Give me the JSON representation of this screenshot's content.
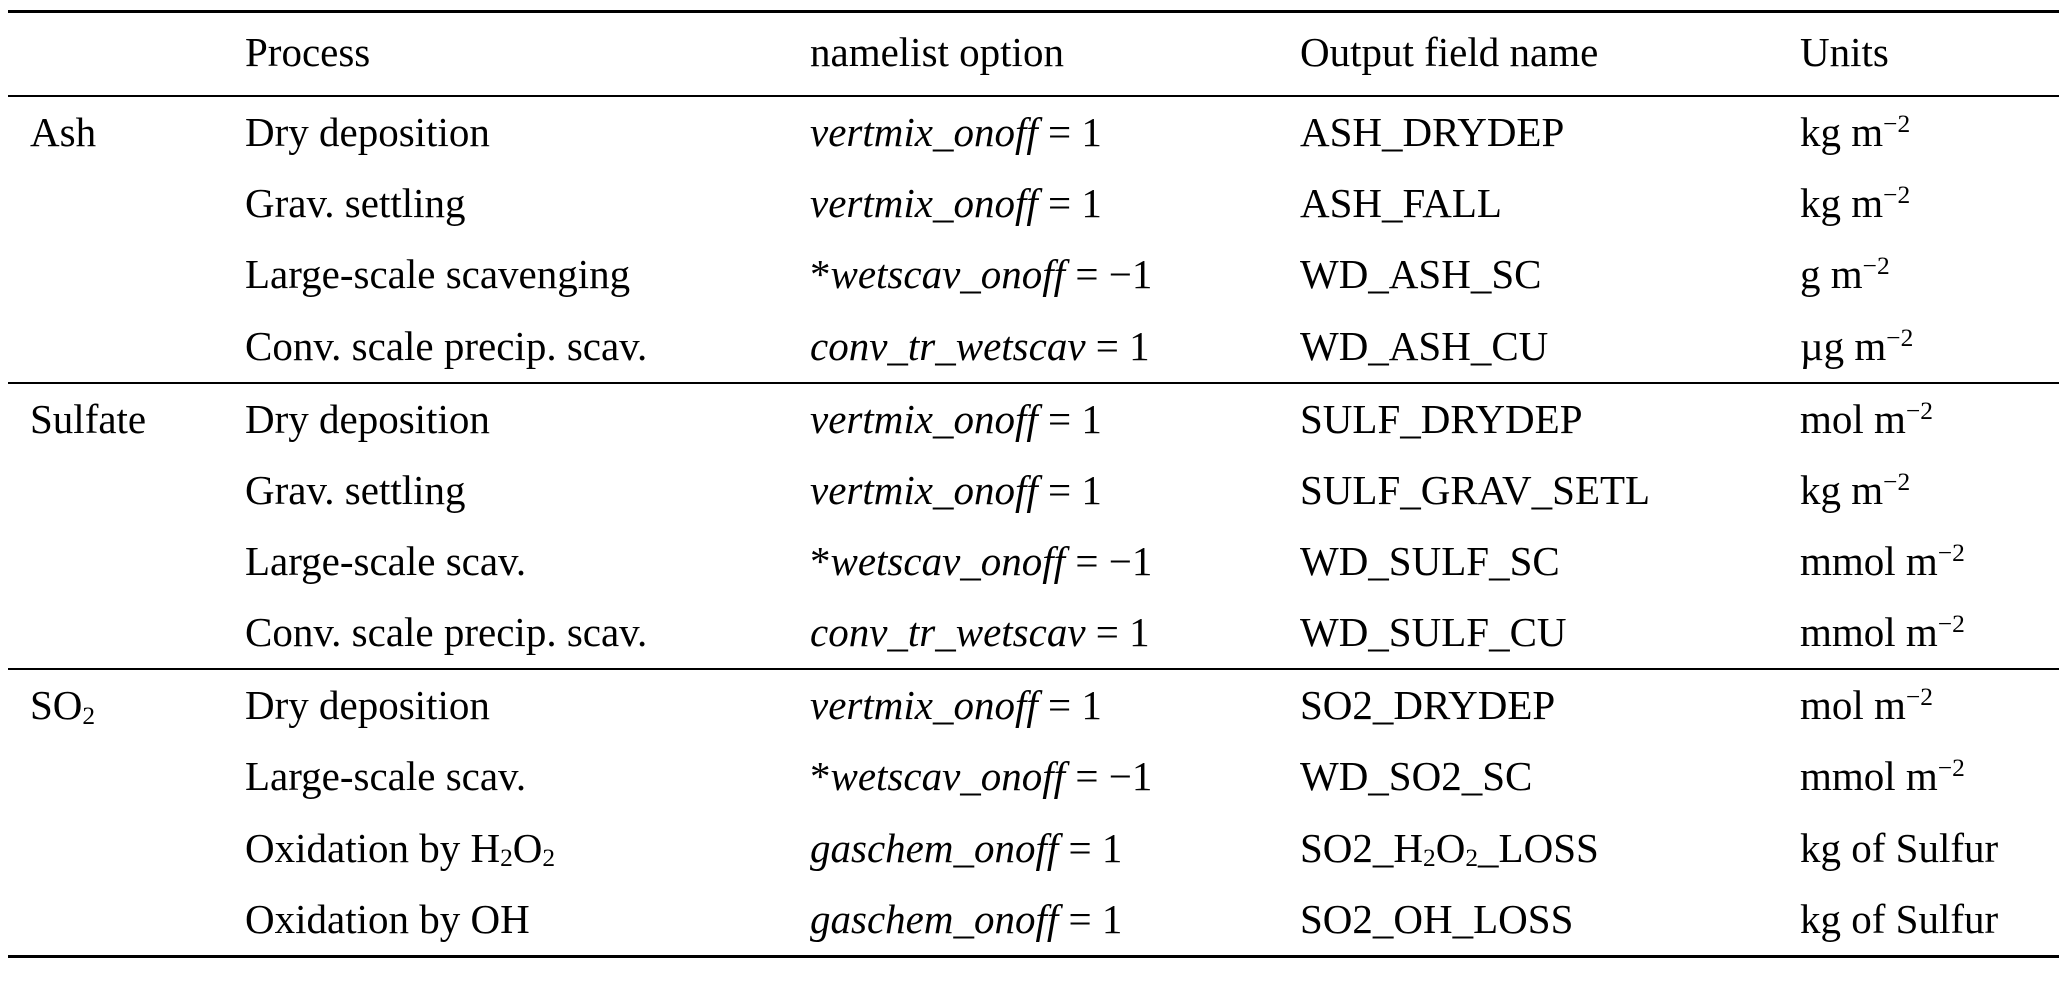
{
  "page": {
    "background_color": "#ffffff",
    "text_color": "#000000",
    "rule_color": "#000000"
  },
  "table": {
    "headers": {
      "group": "",
      "process": "Process",
      "namelist": "namelist option",
      "output": "Output field name",
      "units": "Units"
    },
    "groups": [
      {
        "label": [
          {
            "t": "Ash"
          }
        ],
        "rows": [
          {
            "process": [
              {
                "t": "Dry deposition"
              }
            ],
            "namelist": [
              {
                "t": "vertmix_onoff",
                "i": true
              },
              {
                "t": " = 1"
              }
            ],
            "output": [
              {
                "t": "ASH_DRYDEP"
              }
            ],
            "units": [
              {
                "t": "kg m"
              },
              {
                "t": "−2",
                "s": "sup"
              }
            ]
          },
          {
            "process": [
              {
                "t": "Grav. settling"
              }
            ],
            "namelist": [
              {
                "t": "vertmix_onoff",
                "i": true
              },
              {
                "t": " = 1"
              }
            ],
            "output": [
              {
                "t": "ASH_FALL"
              }
            ],
            "units": [
              {
                "t": "kg m"
              },
              {
                "t": "−2",
                "s": "sup"
              }
            ]
          },
          {
            "process": [
              {
                "t": "Large-scale scavenging"
              }
            ],
            "namelist": [
              {
                "t": "*"
              },
              {
                "t": "wetscav_onoff",
                "i": true
              },
              {
                "t": " = −1"
              }
            ],
            "output": [
              {
                "t": "WD_ASH_SC"
              }
            ],
            "units": [
              {
                "t": "g m"
              },
              {
                "t": "−2",
                "s": "sup"
              }
            ]
          },
          {
            "process": [
              {
                "t": "Conv. scale precip. scav."
              }
            ],
            "namelist": [
              {
                "t": "conv_tr_wetscav",
                "i": true
              },
              {
                "t": " = 1"
              }
            ],
            "output": [
              {
                "t": "WD_ASH_CU"
              }
            ],
            "units": [
              {
                "t": "µg m"
              },
              {
                "t": "−2",
                "s": "sup"
              }
            ]
          }
        ]
      },
      {
        "label": [
          {
            "t": "Sulfate"
          }
        ],
        "rows": [
          {
            "process": [
              {
                "t": "Dry deposition"
              }
            ],
            "namelist": [
              {
                "t": "vertmix_onoff",
                "i": true
              },
              {
                "t": " = 1"
              }
            ],
            "output": [
              {
                "t": "SULF_DRYDEP"
              }
            ],
            "units": [
              {
                "t": "mol m"
              },
              {
                "t": "−2",
                "s": "sup"
              }
            ]
          },
          {
            "process": [
              {
                "t": "Grav. settling"
              }
            ],
            "namelist": [
              {
                "t": "vertmix_onoff",
                "i": true
              },
              {
                "t": " = 1"
              }
            ],
            "output": [
              {
                "t": "SULF_GRAV_SETL"
              }
            ],
            "units": [
              {
                "t": "kg m"
              },
              {
                "t": "−2",
                "s": "sup"
              }
            ]
          },
          {
            "process": [
              {
                "t": "Large-scale scav."
              }
            ],
            "namelist": [
              {
                "t": "*"
              },
              {
                "t": "wetscav_onoff",
                "i": true
              },
              {
                "t": " = −1"
              }
            ],
            "output": [
              {
                "t": "WD_SULF_SC"
              }
            ],
            "units": [
              {
                "t": "mmol m"
              },
              {
                "t": "−2",
                "s": "sup"
              }
            ]
          },
          {
            "process": [
              {
                "t": "Conv. scale precip. scav."
              }
            ],
            "namelist": [
              {
                "t": "conv_tr_wetscav",
                "i": true
              },
              {
                "t": " = 1"
              }
            ],
            "output": [
              {
                "t": "WD_SULF_CU"
              }
            ],
            "units": [
              {
                "t": "mmol m"
              },
              {
                "t": "−2",
                "s": "sup"
              }
            ]
          }
        ]
      },
      {
        "label": [
          {
            "t": "SO"
          },
          {
            "t": "2",
            "s": "sub"
          }
        ],
        "rows": [
          {
            "process": [
              {
                "t": "Dry deposition"
              }
            ],
            "namelist": [
              {
                "t": "vertmix_onoff",
                "i": true
              },
              {
                "t": " = 1"
              }
            ],
            "output": [
              {
                "t": "SO2_DRYDEP"
              }
            ],
            "units": [
              {
                "t": "mol m"
              },
              {
                "t": "−2",
                "s": "sup"
              }
            ]
          },
          {
            "process": [
              {
                "t": "Large-scale scav."
              }
            ],
            "namelist": [
              {
                "t": "*"
              },
              {
                "t": "wetscav_onoff",
                "i": true
              },
              {
                "t": " = −1"
              }
            ],
            "output": [
              {
                "t": "WD_SO2_SC"
              }
            ],
            "units": [
              {
                "t": "mmol m"
              },
              {
                "t": "−2",
                "s": "sup"
              }
            ]
          },
          {
            "process": [
              {
                "t": "Oxidation by H"
              },
              {
                "t": "2",
                "s": "sub"
              },
              {
                "t": "O"
              },
              {
                "t": "2",
                "s": "sub"
              }
            ],
            "namelist": [
              {
                "t": "gaschem_onoff",
                "i": true
              },
              {
                "t": " = 1"
              }
            ],
            "output": [
              {
                "t": "SO2_H"
              },
              {
                "t": "2",
                "s": "sub"
              },
              {
                "t": "O"
              },
              {
                "t": "2",
                "s": "sub"
              },
              {
                "t": "_LOSS"
              }
            ],
            "units": [
              {
                "t": "kg of Sulfur"
              }
            ]
          },
          {
            "process": [
              {
                "t": "Oxidation by OH"
              }
            ],
            "namelist": [
              {
                "t": "gaschem_onoff",
                "i": true
              },
              {
                "t": " = 1"
              }
            ],
            "output": [
              {
                "t": "SO2_OH_LOSS"
              }
            ],
            "units": [
              {
                "t": "kg of Sulfur"
              }
            ]
          }
        ]
      }
    ]
  }
}
